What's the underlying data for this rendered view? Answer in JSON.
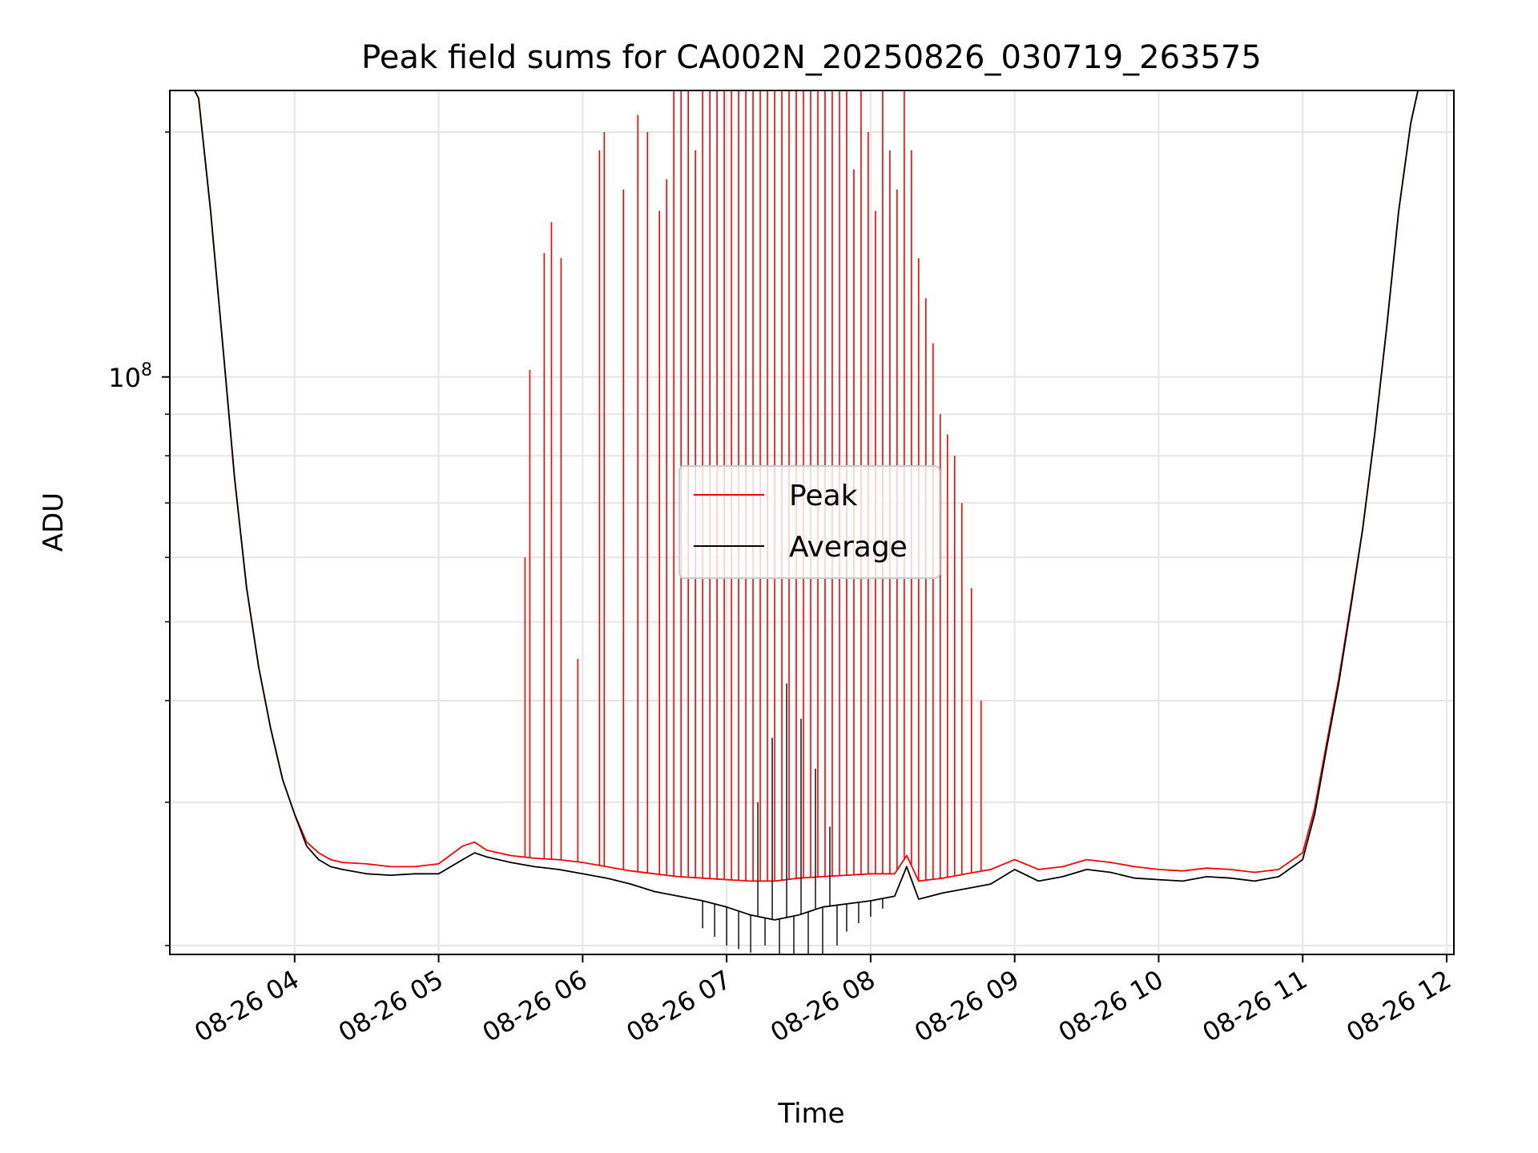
{
  "chart_data": {
    "type": "line",
    "title": "Peak field sums for CA002N_20250826_030719_263575",
    "xlabel": "Time",
    "ylabel": "ADU",
    "y_scale": "log",
    "ylim": [
      19500000,
      225000000
    ],
    "xlim": [
      "08-26 03:08",
      "08-26 12:03"
    ],
    "grid": true,
    "legend": {
      "placement": "center",
      "entries": [
        {
          "name": "Peak",
          "color": "#ff0000"
        },
        {
          "name": "Average",
          "color": "#000000"
        }
      ]
    },
    "x_ticks": [
      "08-26 04",
      "08-26 05",
      "08-26 06",
      "08-26 07",
      "08-26 08",
      "08-26 09",
      "08-26 10",
      "08-26 11",
      "08-26 12"
    ],
    "y_major_tick": {
      "value": 100000000,
      "base": "10",
      "exp": "8"
    },
    "y_minor_ticks": [
      20000000,
      30000000,
      40000000,
      50000000,
      60000000,
      70000000,
      80000000,
      90000000,
      200000000
    ],
    "series": [
      {
        "name": "Average",
        "color": "#000000",
        "x": [
          "08-26 03:15",
          "08-26 03:20",
          "08-26 03:25",
          "08-26 03:30",
          "08-26 03:35",
          "08-26 03:40",
          "08-26 03:45",
          "08-26 03:50",
          "08-26 03:55",
          "08-26 04:00",
          "08-26 04:05",
          "08-26 04:10",
          "08-26 04:15",
          "08-26 04:20",
          "08-26 04:30",
          "08-26 04:40",
          "08-26 04:50",
          "08-26 05:00",
          "08-26 05:10",
          "08-26 05:15",
          "08-26 05:20",
          "08-26 05:30",
          "08-26 05:40",
          "08-26 05:50",
          "08-26 06:00",
          "08-26 06:10",
          "08-26 06:20",
          "08-26 06:30",
          "08-26 06:40",
          "08-26 06:50",
          "08-26 07:00",
          "08-26 07:10",
          "08-26 07:20",
          "08-26 07:30",
          "08-26 07:40",
          "08-26 07:50",
          "08-26 08:00",
          "08-26 08:10",
          "08-26 08:15",
          "08-26 08:20",
          "08-26 08:30",
          "08-26 08:40",
          "08-26 08:50",
          "08-26 09:00",
          "08-26 09:10",
          "08-26 09:20",
          "08-26 09:30",
          "08-26 09:40",
          "08-26 09:50",
          "08-26 10:00",
          "08-26 10:10",
          "08-26 10:20",
          "08-26 10:30",
          "08-26 10:40",
          "08-26 10:50",
          "08-26 11:00",
          "08-26 11:05",
          "08-26 11:10",
          "08-26 11:15",
          "08-26 11:20",
          "08-26 11:25",
          "08-26 11:30",
          "08-26 11:35",
          "08-26 11:40",
          "08-26 11:45",
          "08-26 11:48"
        ],
        "values": [
          235000000,
          220000000,
          160000000,
          110000000,
          75000000,
          55000000,
          44000000,
          37000000,
          32000000,
          29000000,
          26500000,
          25500000,
          25000000,
          24800000,
          24500000,
          24400000,
          24500000,
          24500000,
          25500000,
          26000000,
          25700000,
          25300000,
          25000000,
          24800000,
          24500000,
          24200000,
          23800000,
          23300000,
          23000000,
          22700000,
          22300000,
          21800000,
          21500000,
          21800000,
          22300000,
          22500000,
          22700000,
          23000000,
          25000000,
          22800000,
          23200000,
          23500000,
          23800000,
          24800000,
          24000000,
          24300000,
          24800000,
          24600000,
          24200000,
          24100000,
          24000000,
          24300000,
          24200000,
          24000000,
          24300000,
          25500000,
          29000000,
          35000000,
          42000000,
          52000000,
          65000000,
          85000000,
          115000000,
          160000000,
          205000000,
          225000000
        ]
      },
      {
        "name": "Peak",
        "color": "#ff0000",
        "x": [
          "08-26 03:15",
          "08-26 03:20",
          "08-26 03:25",
          "08-26 03:30",
          "08-26 03:35",
          "08-26 03:40",
          "08-26 03:45",
          "08-26 03:50",
          "08-26 03:55",
          "08-26 04:00",
          "08-26 04:05",
          "08-26 04:10",
          "08-26 04:15",
          "08-26 04:20",
          "08-26 04:30",
          "08-26 04:40",
          "08-26 04:50",
          "08-26 05:00",
          "08-26 05:10",
          "08-26 05:15",
          "08-26 05:20",
          "08-26 05:30",
          "08-26 05:40",
          "08-26 05:50",
          "08-26 06:00",
          "08-26 06:10",
          "08-26 06:20",
          "08-26 06:30",
          "08-26 06:40",
          "08-26 06:50",
          "08-26 07:00",
          "08-26 07:10",
          "08-26 07:20",
          "08-26 07:30",
          "08-26 07:40",
          "08-26 07:50",
          "08-26 08:00",
          "08-26 08:10",
          "08-26 08:15",
          "08-26 08:20",
          "08-26 08:30",
          "08-26 08:40",
          "08-26 08:50",
          "08-26 09:00",
          "08-26 09:10",
          "08-26 09:20",
          "08-26 09:30",
          "08-26 09:40",
          "08-26 09:50",
          "08-26 10:00",
          "08-26 10:10",
          "08-26 10:20",
          "08-26 10:30",
          "08-26 10:40",
          "08-26 10:50",
          "08-26 11:00",
          "08-26 11:05",
          "08-26 11:10",
          "08-26 11:15",
          "08-26 11:20",
          "08-26 11:25",
          "08-26 11:30",
          "08-26 11:35",
          "08-26 11:40",
          "08-26 11:45",
          "08-26 11:48"
        ],
        "values": [
          235000000,
          220000000,
          160000000,
          110000000,
          75000000,
          55000000,
          44000000,
          37000000,
          32000000,
          29000000,
          26800000,
          26000000,
          25500000,
          25300000,
          25200000,
          25000000,
          25000000,
          25200000,
          26500000,
          26800000,
          26200000,
          25800000,
          25600000,
          25500000,
          25300000,
          25000000,
          24700000,
          24500000,
          24300000,
          24200000,
          24100000,
          24000000,
          24000000,
          24200000,
          24300000,
          24400000,
          24500000,
          24500000,
          25800000,
          24000000,
          24200000,
          24500000,
          24800000,
          25500000,
          24800000,
          25000000,
          25500000,
          25300000,
          25000000,
          24800000,
          24700000,
          24900000,
          24800000,
          24600000,
          24800000,
          26000000,
          29500000,
          35500000,
          42500000,
          52500000,
          65000000,
          85000000,
          115000000,
          160000000,
          205000000,
          225000000
        ]
      }
    ],
    "peak_spikes": {
      "x": [
        "08-26 05:36",
        "08-26 05:38",
        "08-26 05:44",
        "08-26 05:47",
        "08-26 05:51",
        "08-26 05:58",
        "08-26 06:07",
        "08-26 06:09",
        "08-26 06:17",
        "08-26 06:23",
        "08-26 06:27",
        "08-26 06:32",
        "08-26 06:35",
        "08-26 06:38",
        "08-26 06:41",
        "08-26 06:44",
        "08-26 06:47",
        "08-26 06:50",
        "08-26 06:53",
        "08-26 06:56",
        "08-26 06:59",
        "08-26 07:02",
        "08-26 07:05",
        "08-26 07:08",
        "08-26 07:11",
        "08-26 07:14",
        "08-26 07:17",
        "08-26 07:20",
        "08-26 07:23",
        "08-26 07:26",
        "08-26 07:29",
        "08-26 07:32",
        "08-26 07:35",
        "08-26 07:38",
        "08-26 07:41",
        "08-26 07:44",
        "08-26 07:47",
        "08-26 07:50",
        "08-26 07:53",
        "08-26 07:56",
        "08-26 07:59",
        "08-26 08:02",
        "08-26 08:05",
        "08-26 08:08",
        "08-26 08:11",
        "08-26 08:14",
        "08-26 08:17",
        "08-26 08:20",
        "08-26 08:23",
        "08-26 08:26",
        "08-26 08:29",
        "08-26 08:32",
        "08-26 08:35",
        "08-26 08:38",
        "08-26 08:42",
        "08-26 08:46"
      ],
      "values": [
        60000000,
        102000000,
        142000000,
        155000000,
        140000000,
        45000000,
        190000000,
        200000000,
        170000000,
        210000000,
        200000000,
        160000000,
        175000000,
        225000000,
        225000000,
        225000000,
        190000000,
        225000000,
        225000000,
        225000000,
        225000000,
        225000000,
        225000000,
        225000000,
        225000000,
        225000000,
        225000000,
        225000000,
        225000000,
        225000000,
        225000000,
        225000000,
        225000000,
        225000000,
        225000000,
        225000000,
        225000000,
        225000000,
        180000000,
        225000000,
        200000000,
        160000000,
        225000000,
        190000000,
        170000000,
        225000000,
        190000000,
        140000000,
        125000000,
        110000000,
        90000000,
        85000000,
        80000000,
        70000000,
        55000000,
        40000000
      ]
    },
    "average_noise": {
      "x": [
        "08-26 06:50",
        "08-26 06:55",
        "08-26 07:00",
        "08-26 07:05",
        "08-26 07:10",
        "08-26 07:13",
        "08-26 07:16",
        "08-26 07:19",
        "08-26 07:22",
        "08-26 07:25",
        "08-26 07:28",
        "08-26 07:31",
        "08-26 07:34",
        "08-26 07:37",
        "08-26 07:40",
        "08-26 07:43",
        "08-26 07:46",
        "08-26 07:50",
        "08-26 07:55",
        "08-26 08:00",
        "08-26 08:05"
      ],
      "values": [
        21000000,
        20500000,
        20000000,
        19800000,
        19600000,
        30000000,
        20000000,
        36000000,
        19500000,
        42000000,
        19200000,
        38000000,
        19000000,
        33000000,
        19300000,
        28000000,
        20000000,
        20800000,
        21300000,
        21700000,
        22200000
      ]
    }
  }
}
